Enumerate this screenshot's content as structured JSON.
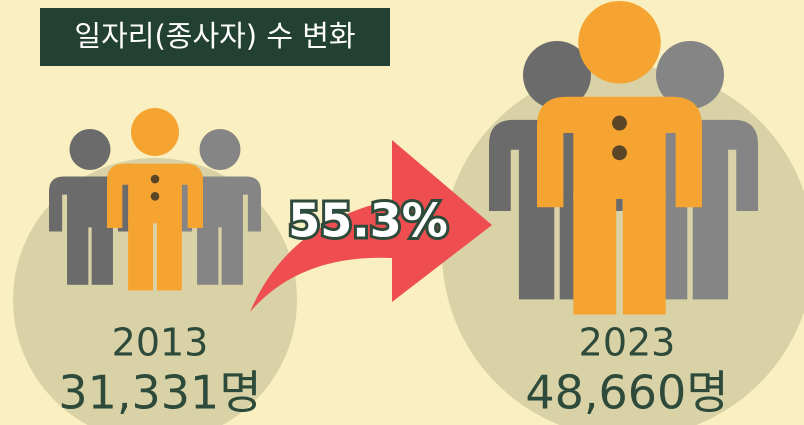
{
  "title": "일자리(종사자) 수 변화",
  "before": {
    "year": "2013",
    "count": "31,331명"
  },
  "change": "55.3%",
  "after": {
    "year": "2023",
    "count": "48,660명"
  }
}
